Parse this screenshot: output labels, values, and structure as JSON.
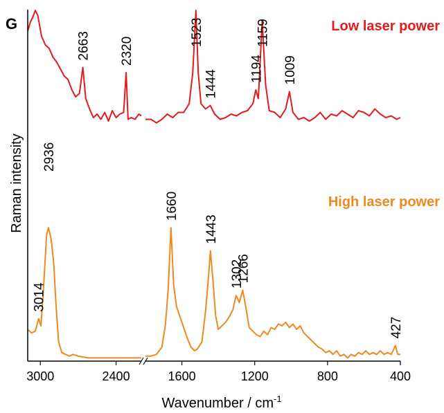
{
  "panel_label": "G",
  "xlabel": "Wavenumber / cm",
  "xlabel_sup": "-1",
  "ylabel": "Raman intensity",
  "colors": {
    "low": "#e41a1c",
    "high": "#f0891d",
    "axis": "#000000"
  },
  "chart_data": {
    "type": "line",
    "xlabel": "Wavenumber / cm-1",
    "ylabel": "Raman intensity",
    "x_axis_reversed": true,
    "xlim": [
      3100,
      400
    ],
    "x_ticks": [
      3000,
      2400,
      1600,
      1200,
      800,
      400
    ],
    "x_axis_break_between": [
      2200,
      1800
    ],
    "y_ticks_shown": false,
    "series": [
      {
        "name": "Low laser power",
        "color": "#e41a1c",
        "peak_labels": [
          "2663",
          "2320",
          "1523",
          "1444",
          "1194",
          "1159",
          "1009"
        ],
        "points": [
          [
            3100,
            0.88
          ],
          [
            3080,
            0.93
          ],
          [
            3060,
            0.96
          ],
          [
            3040,
            1.0
          ],
          [
            3020,
            0.97
          ],
          [
            2990,
            0.85
          ],
          [
            2960,
            0.8
          ],
          [
            2930,
            0.78
          ],
          [
            2900,
            0.73
          ],
          [
            2870,
            0.7
          ],
          [
            2840,
            0.66
          ],
          [
            2810,
            0.62
          ],
          [
            2780,
            0.6
          ],
          [
            2750,
            0.54
          ],
          [
            2720,
            0.5
          ],
          [
            2690,
            0.52
          ],
          [
            2663,
            0.67
          ],
          [
            2640,
            0.49
          ],
          [
            2610,
            0.43
          ],
          [
            2580,
            0.38
          ],
          [
            2550,
            0.4
          ],
          [
            2520,
            0.37
          ],
          [
            2490,
            0.41
          ],
          [
            2460,
            0.36
          ],
          [
            2430,
            0.42
          ],
          [
            2400,
            0.38
          ],
          [
            2370,
            0.4
          ],
          [
            2340,
            0.41
          ],
          [
            2320,
            0.64
          ],
          [
            2305,
            0.37
          ],
          [
            2280,
            0.38
          ],
          [
            2250,
            0.37
          ],
          [
            2220,
            0.4
          ],
          [
            2200,
            0.39
          ],
          [
            1800,
            0.37
          ],
          [
            1770,
            0.37
          ],
          [
            1740,
            0.35
          ],
          [
            1710,
            0.37
          ],
          [
            1680,
            0.4
          ],
          [
            1650,
            0.38
          ],
          [
            1620,
            0.41
          ],
          [
            1590,
            0.41
          ],
          [
            1560,
            0.46
          ],
          [
            1540,
            0.64
          ],
          [
            1523,
            1.0
          ],
          [
            1510,
            0.64
          ],
          [
            1495,
            0.46
          ],
          [
            1470,
            0.43
          ],
          [
            1444,
            0.45
          ],
          [
            1420,
            0.4
          ],
          [
            1390,
            0.37
          ],
          [
            1360,
            0.38
          ],
          [
            1330,
            0.4
          ],
          [
            1300,
            0.39
          ],
          [
            1270,
            0.41
          ],
          [
            1240,
            0.42
          ],
          [
            1210,
            0.46
          ],
          [
            1194,
            0.54
          ],
          [
            1180,
            0.49
          ],
          [
            1159,
            0.94
          ],
          [
            1140,
            0.57
          ],
          [
            1120,
            0.42
          ],
          [
            1090,
            0.41
          ],
          [
            1060,
            0.38
          ],
          [
            1030,
            0.43
          ],
          [
            1009,
            0.53
          ],
          [
            990,
            0.41
          ],
          [
            960,
            0.37
          ],
          [
            930,
            0.38
          ],
          [
            900,
            0.36
          ],
          [
            870,
            0.38
          ],
          [
            840,
            0.41
          ],
          [
            810,
            0.37
          ],
          [
            780,
            0.4
          ],
          [
            750,
            0.39
          ],
          [
            720,
            0.42
          ],
          [
            690,
            0.4
          ],
          [
            660,
            0.38
          ],
          [
            630,
            0.42
          ],
          [
            600,
            0.41
          ],
          [
            570,
            0.39
          ],
          [
            540,
            0.43
          ],
          [
            510,
            0.4
          ],
          [
            480,
            0.38
          ],
          [
            450,
            0.39
          ],
          [
            420,
            0.37
          ],
          [
            400,
            0.38
          ]
        ]
      },
      {
        "name": "High laser power",
        "color": "#f0891d",
        "peak_labels": [
          "3014",
          "2936",
          "1660",
          "1443",
          "1302",
          "1266",
          "427"
        ],
        "points": [
          [
            3100,
            0.17
          ],
          [
            3070,
            0.15
          ],
          [
            3040,
            0.16
          ],
          [
            3014,
            0.23
          ],
          [
            2995,
            0.19
          ],
          [
            2975,
            0.4
          ],
          [
            2950,
            0.7
          ],
          [
            2936,
            0.74
          ],
          [
            2915,
            0.68
          ],
          [
            2895,
            0.55
          ],
          [
            2875,
            0.3
          ],
          [
            2855,
            0.1
          ],
          [
            2830,
            0.04
          ],
          [
            2800,
            0.03
          ],
          [
            2770,
            0.02
          ],
          [
            2740,
            0.03
          ],
          [
            2700,
            0.02
          ],
          [
            2660,
            0.015
          ],
          [
            2620,
            0.01
          ],
          [
            2580,
            0.01
          ],
          [
            2540,
            0.01
          ],
          [
            2500,
            0.01
          ],
          [
            2460,
            0.01
          ],
          [
            2420,
            0.01
          ],
          [
            2380,
            0.01
          ],
          [
            2340,
            0.01
          ],
          [
            2300,
            0.01
          ],
          [
            2260,
            0.01
          ],
          [
            2220,
            0.01
          ],
          [
            2200,
            0.01
          ],
          [
            1800,
            0.02
          ],
          [
            1770,
            0.02
          ],
          [
            1740,
            0.03
          ],
          [
            1710,
            0.07
          ],
          [
            1690,
            0.2
          ],
          [
            1675,
            0.4
          ],
          [
            1660,
            0.74
          ],
          [
            1645,
            0.42
          ],
          [
            1630,
            0.3
          ],
          [
            1610,
            0.24
          ],
          [
            1590,
            0.18
          ],
          [
            1570,
            0.12
          ],
          [
            1550,
            0.07
          ],
          [
            1530,
            0.05
          ],
          [
            1515,
            0.06
          ],
          [
            1490,
            0.1
          ],
          [
            1470,
            0.27
          ],
          [
            1455,
            0.45
          ],
          [
            1443,
            0.61
          ],
          [
            1430,
            0.45
          ],
          [
            1415,
            0.25
          ],
          [
            1400,
            0.17
          ],
          [
            1380,
            0.19
          ],
          [
            1360,
            0.21
          ],
          [
            1340,
            0.24
          ],
          [
            1320,
            0.28
          ],
          [
            1302,
            0.36
          ],
          [
            1285,
            0.32
          ],
          [
            1266,
            0.39
          ],
          [
            1250,
            0.3
          ],
          [
            1230,
            0.18
          ],
          [
            1210,
            0.16
          ],
          [
            1190,
            0.14
          ],
          [
            1170,
            0.13
          ],
          [
            1150,
            0.16
          ],
          [
            1130,
            0.14
          ],
          [
            1110,
            0.18
          ],
          [
            1090,
            0.17
          ],
          [
            1070,
            0.2
          ],
          [
            1050,
            0.19
          ],
          [
            1030,
            0.21
          ],
          [
            1010,
            0.18
          ],
          [
            990,
            0.2
          ],
          [
            970,
            0.17
          ],
          [
            950,
            0.19
          ],
          [
            930,
            0.15
          ],
          [
            910,
            0.13
          ],
          [
            890,
            0.11
          ],
          [
            870,
            0.09
          ],
          [
            850,
            0.07
          ],
          [
            830,
            0.06
          ],
          [
            810,
            0.04
          ],
          [
            790,
            0.05
          ],
          [
            770,
            0.03
          ],
          [
            750,
            0.05
          ],
          [
            730,
            0.02
          ],
          [
            710,
            0.03
          ],
          [
            690,
            0.01
          ],
          [
            670,
            0.03
          ],
          [
            650,
            0.02
          ],
          [
            630,
            0.04
          ],
          [
            610,
            0.03
          ],
          [
            590,
            0.05
          ],
          [
            570,
            0.03
          ],
          [
            550,
            0.04
          ],
          [
            530,
            0.03
          ],
          [
            510,
            0.05
          ],
          [
            490,
            0.03
          ],
          [
            470,
            0.04
          ],
          [
            450,
            0.03
          ],
          [
            427,
            0.08
          ],
          [
            415,
            0.03
          ],
          [
            400,
            0.03
          ]
        ]
      }
    ]
  }
}
